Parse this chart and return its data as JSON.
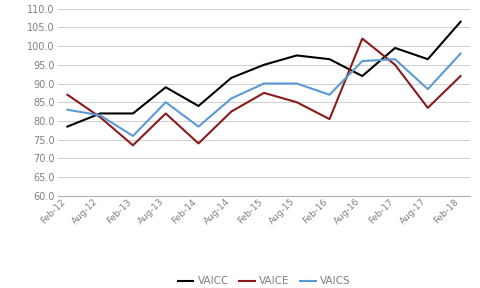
{
  "labels": [
    "Feb-12",
    "Aug-12",
    "Feb-13",
    "Aug-13",
    "Feb-14",
    "Aug-14",
    "Feb-15",
    "Aug-15",
    "Feb-16",
    "Aug-16",
    "Feb-17",
    "Aug-17",
    "Feb-18"
  ],
  "VAICC": [
    78.5,
    82.0,
    82.0,
    89.0,
    84.0,
    91.5,
    95.0,
    97.5,
    96.5,
    92.0,
    99.5,
    96.5,
    106.5
  ],
  "VAICE": [
    87.0,
    81.0,
    73.5,
    82.0,
    74.0,
    82.5,
    87.5,
    85.0,
    80.5,
    102.0,
    95.0,
    83.5,
    92.0
  ],
  "VAICS": [
    83.0,
    81.5,
    76.0,
    85.0,
    78.5,
    86.0,
    90.0,
    90.0,
    87.0,
    96.0,
    96.5,
    88.5,
    98.0
  ],
  "line_colors": {
    "VAICC": "#000000",
    "VAICE": "#8b1a1a",
    "VAICS": "#5b9bd5"
  },
  "ylim": [
    60.0,
    110.0
  ],
  "ytick_step": 5.0,
  "legend_labels": [
    "VAICC",
    "VAICE",
    "VAICS"
  ],
  "background_color": "#ffffff",
  "grid_color": "#c8c8c8",
  "line_width": 1.5,
  "legend_text_color": "#808080",
  "tick_label_color": "#808080",
  "xticklabel_fontsize": 6.5,
  "yticklabel_fontsize": 7.0,
  "legend_fontsize": 7.5
}
